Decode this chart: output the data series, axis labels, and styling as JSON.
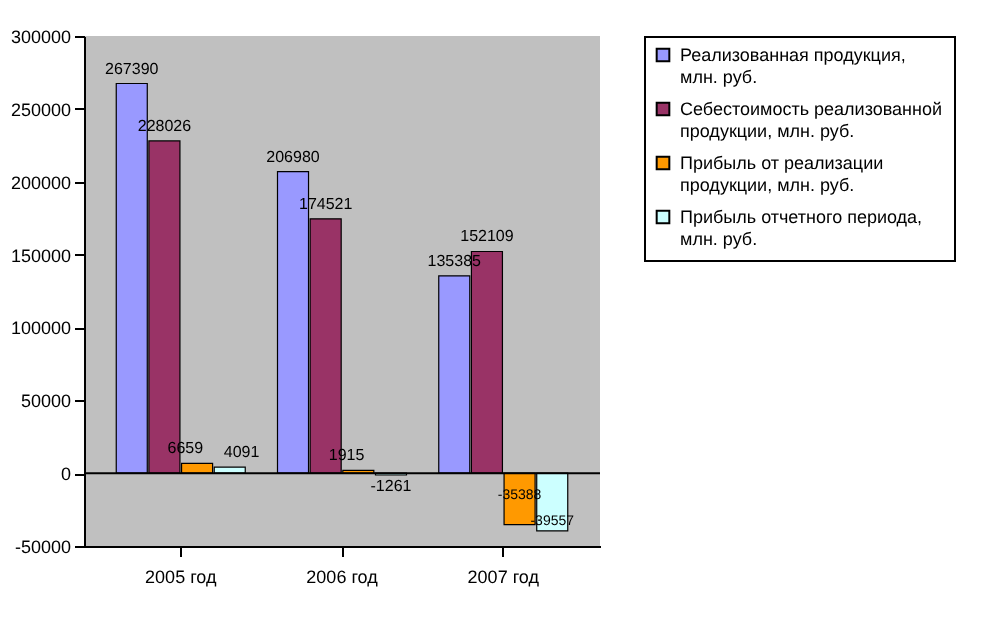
{
  "chart_data": {
    "type": "bar",
    "categories": [
      "2005 год",
      "2006 год",
      "2007 год"
    ],
    "series": [
      {
        "name": "Реализованная продукция, млн. руб.",
        "color": "#9999ff",
        "values": [
          267390,
          206980,
          135385
        ]
      },
      {
        "name": "Себестоимость реализованной продукции, млн. руб.",
        "color": "#993366",
        "values": [
          228026,
          174521,
          152109
        ]
      },
      {
        "name": "Прибыль от реализации продукции, млн. руб.",
        "color": "#ff9900",
        "values": [
          6659,
          1915,
          -35388
        ]
      },
      {
        "name": "Прибыль отчетного периода, млн. руб.",
        "color": "#ccffff",
        "values": [
          4091,
          -1261,
          -39557
        ]
      }
    ],
    "ylim": [
      -50000,
      300000
    ],
    "yticks": [
      -50000,
      0,
      50000,
      100000,
      150000,
      200000,
      250000,
      300000
    ],
    "ref_lines": [
      {
        "axis": "y",
        "value": 0,
        "color": "#000000"
      }
    ],
    "data_labels": true,
    "legend": "right",
    "grid": false
  }
}
